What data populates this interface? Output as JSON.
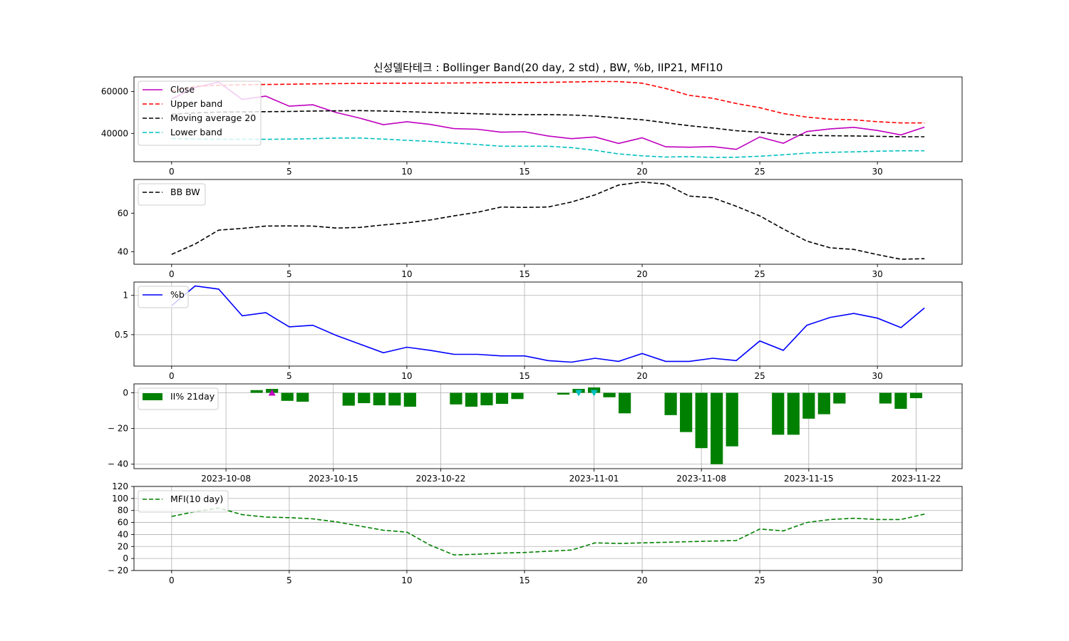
{
  "title": "신성델타테크 : Bollinger Band(20 day, 2 std) , BW, %b, IIP21, MFI10",
  "colors": {
    "close": "#bf00bf",
    "upper": "#ff0000",
    "ma": "#000000",
    "lower": "#00bfbf",
    "bw": "#000000",
    "pb": "#0000ff",
    "ii": "#008000",
    "mfi": "#008000",
    "buy": "#bf00bf",
    "sell": "#00bfbf",
    "grid": "#b0b0b0"
  },
  "chart_data": [
    {
      "type": "line",
      "panel": "bollinger",
      "x": [
        0,
        1,
        2,
        3,
        4,
        5,
        6,
        7,
        8,
        9,
        10,
        11,
        12,
        13,
        14,
        15,
        16,
        17,
        18,
        19,
        20,
        21,
        22,
        23,
        24,
        25,
        26,
        27,
        28,
        29,
        30,
        31,
        32
      ],
      "series": [
        {
          "name": "Close",
          "style": "solid",
          "color": "#bf00bf",
          "values": [
            56500,
            62000,
            64500,
            56200,
            57800,
            53000,
            53700,
            50000,
            47300,
            44200,
            45600,
            44300,
            42300,
            42000,
            40600,
            40800,
            38800,
            37500,
            38300,
            35200,
            37900,
            33600,
            33400,
            33700,
            32400,
            38300,
            35300,
            40900,
            42200,
            42900,
            41400,
            39300,
            43000
          ]
        },
        {
          "name": "Upper band",
          "style": "dashed",
          "color": "#ff0000",
          "values": [
            60300,
            62500,
            63000,
            63300,
            63400,
            63500,
            63700,
            63800,
            63900,
            64000,
            64000,
            64000,
            64100,
            64200,
            64300,
            64300,
            64400,
            64600,
            64800,
            64800,
            64000,
            61500,
            58200,
            56800,
            54300,
            52300,
            49500,
            47800,
            46800,
            46500,
            45600,
            45000,
            45000
          ]
        },
        {
          "name": "Moving average 20",
          "style": "dashed",
          "color": "#000000",
          "values": [
            49200,
            49800,
            50200,
            50300,
            50400,
            50500,
            50700,
            50800,
            50900,
            50700,
            50400,
            50100,
            49700,
            49400,
            49100,
            49000,
            49000,
            48800,
            48300,
            47400,
            46500,
            45100,
            43700,
            42600,
            41300,
            40600,
            39500,
            39100,
            38900,
            38800,
            38600,
            38400,
            38400
          ]
        },
        {
          "name": "Lower band",
          "style": "dashed",
          "color": "#00bfbf",
          "values": [
            37600,
            37300,
            37200,
            37200,
            37200,
            37300,
            37500,
            37800,
            37800,
            37300,
            36700,
            36200,
            35400,
            34700,
            33900,
            33900,
            33900,
            33200,
            31900,
            30200,
            29300,
            28700,
            28900,
            28500,
            28600,
            29100,
            29800,
            30600,
            31000,
            31200,
            31500,
            31700,
            31700
          ]
        }
      ],
      "xlim": [
        -1.6,
        33.6
      ],
      "ylim": [
        26500,
        67000
      ],
      "xticks": [
        0,
        5,
        10,
        15,
        20,
        25,
        30
      ],
      "yticks": [
        40000,
        60000
      ],
      "legend": "upper-left"
    },
    {
      "type": "line",
      "panel": "bandwidth",
      "x": [
        0,
        1,
        2,
        3,
        4,
        5,
        6,
        7,
        8,
        9,
        10,
        11,
        12,
        13,
        14,
        15,
        16,
        17,
        18,
        19,
        20,
        21,
        22,
        23,
        24,
        25,
        26,
        27,
        28,
        29,
        30,
        31,
        32
      ],
      "series": [
        {
          "name": "BB BW",
          "style": "dashed",
          "color": "#000000",
          "values": [
            38.6,
            44.0,
            51.2,
            52.1,
            53.3,
            53.4,
            53.3,
            52.3,
            52.6,
            53.9,
            55.0,
            56.5,
            58.6,
            60.5,
            63.2,
            63.0,
            63.2,
            65.8,
            69.5,
            74.6,
            76.2,
            75.1,
            68.9,
            68.0,
            63.6,
            58.6,
            51.8,
            45.5,
            42.0,
            41.2,
            38.5,
            36.1,
            36.4
          ]
        }
      ],
      "xlim": [
        -1.6,
        33.6
      ],
      "ylim": [
        33.5,
        77.5
      ],
      "xticks": [
        0,
        5,
        10,
        15,
        20,
        25,
        30
      ],
      "yticks": [
        40,
        60
      ],
      "legend": "upper-left"
    },
    {
      "type": "line",
      "panel": "percent-b",
      "x": [
        0,
        1,
        2,
        3,
        4,
        5,
        6,
        7,
        8,
        9,
        10,
        11,
        12,
        13,
        14,
        15,
        16,
        17,
        18,
        19,
        20,
        21,
        22,
        23,
        24,
        25,
        26,
        27,
        28,
        29,
        30,
        31,
        32
      ],
      "series": [
        {
          "name": "%b",
          "style": "solid",
          "color": "#0000ff",
          "values": [
            0.87,
            1.12,
            1.08,
            0.74,
            0.78,
            0.6,
            0.62,
            0.49,
            0.38,
            0.27,
            0.34,
            0.3,
            0.25,
            0.25,
            0.23,
            0.23,
            0.17,
            0.15,
            0.2,
            0.16,
            0.26,
            0.16,
            0.16,
            0.2,
            0.17,
            0.42,
            0.3,
            0.62,
            0.72,
            0.77,
            0.71,
            0.59,
            0.84
          ]
        }
      ],
      "xlim": [
        -1.6,
        33.6
      ],
      "ylim": [
        0.1,
        1.17
      ],
      "xticks": [
        0,
        5,
        10,
        15,
        20,
        25,
        30
      ],
      "yticks": [
        0.5,
        1.0
      ],
      "grid": true,
      "legend": "upper-left"
    },
    {
      "type": "bar",
      "panel": "intraday-intensity",
      "x": [
        "2023-10-04",
        "2023-10-05",
        "2023-10-06",
        "2023-10-10",
        "2023-10-11",
        "2023-10-12",
        "2023-10-13",
        "2023-10-16",
        "2023-10-17",
        "2023-10-18",
        "2023-10-19",
        "2023-10-20",
        "2023-10-23",
        "2023-10-24",
        "2023-10-25",
        "2023-10-26",
        "2023-10-27",
        "2023-10-30",
        "2023-10-31",
        "2023-11-01",
        "2023-11-02",
        "2023-11-03",
        "2023-11-06",
        "2023-11-07",
        "2023-11-08",
        "2023-11-09",
        "2023-11-10",
        "2023-11-13",
        "2023-11-14",
        "2023-11-15",
        "2023-11-16",
        "2023-11-17",
        "2023-11-20",
        "2023-11-21",
        "2023-11-22"
      ],
      "series": [
        {
          "name": "II% 21day",
          "color": "#008000",
          "values": [
            0,
            0,
            0,
            1.5,
            2.2,
            -4.5,
            -5.0,
            -7.2,
            -5.8,
            -7.0,
            -7.1,
            -7.8,
            -6.5,
            -7.8,
            -7.0,
            -6.2,
            -3.5,
            -1.0,
            2.2,
            3.0,
            -2.5,
            -11.5,
            -12.5,
            -22.0,
            -31.0,
            -40.0,
            -30.0,
            -23.5,
            -23.5,
            -14.5,
            -12.0,
            -6.0,
            -6.0,
            -9.0,
            -3.0
          ]
        }
      ],
      "markers": [
        {
          "date": "2023-10-11",
          "value": 0,
          "kind": "buy",
          "shape": "triangle-up",
          "color": "#bf00bf"
        },
        {
          "date": "2023-10-31",
          "value": 0,
          "kind": "sell",
          "shape": "triangle-down",
          "color": "#00bfbf"
        },
        {
          "date": "2023-11-01",
          "value": 0,
          "kind": "sell",
          "shape": "triangle-down",
          "color": "#00bfbf"
        }
      ],
      "xlim": [
        "2023-10-02",
        "2023-11-25"
      ],
      "ylim": [
        -42.5,
        5.0
      ],
      "xticks": [
        "2023-10-08",
        "2023-10-15",
        "2023-10-22",
        "2023-11-01",
        "2023-11-08",
        "2023-11-15",
        "2023-11-22"
      ],
      "yticks": [
        0,
        -20,
        -40
      ],
      "ytick_labels": [
        "0",
        "− 20",
        "− 40"
      ],
      "grid": true,
      "legend": "upper-left"
    },
    {
      "type": "line",
      "panel": "mfi",
      "x": [
        0,
        1,
        2,
        3,
        4,
        5,
        6,
        7,
        8,
        9,
        10,
        11,
        12,
        13,
        14,
        15,
        16,
        17,
        18,
        19,
        20,
        21,
        22,
        23,
        24,
        25,
        26,
        27,
        28,
        29,
        30,
        31,
        32
      ],
      "series": [
        {
          "name": "MFI(10 day)",
          "style": "dashed",
          "color": "#008000",
          "values": [
            70,
            78,
            84,
            73,
            69,
            68,
            66,
            61,
            54,
            47,
            44,
            22,
            6,
            7,
            9,
            10,
            12,
            14,
            26,
            25,
            26,
            27,
            28,
            29,
            30,
            49,
            46,
            60,
            65,
            67,
            65,
            65,
            74
          ]
        }
      ],
      "xlim": [
        -1.6,
        33.6
      ],
      "ylim": [
        -20,
        120
      ],
      "xticks": [
        0,
        5,
        10,
        15,
        20,
        25,
        30
      ],
      "yticks": [
        -20,
        0,
        20,
        40,
        60,
        80,
        100,
        120
      ],
      "ytick_labels": [
        "− 20",
        "0",
        "20",
        "40",
        "60",
        "80",
        "100",
        "120"
      ],
      "grid": true,
      "legend": "upper-left"
    }
  ]
}
